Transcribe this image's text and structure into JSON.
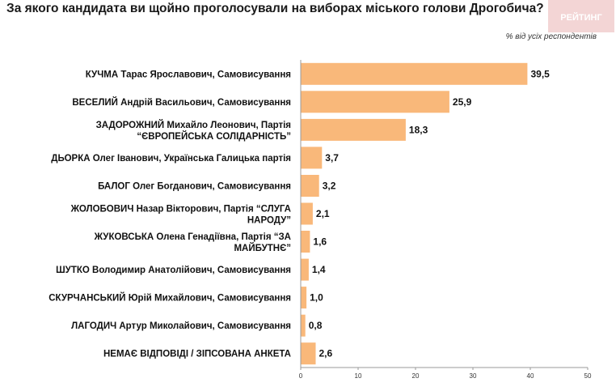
{
  "header": {
    "title": "За якого кандидата ви щойно проголосували на виборах міського голови Дрогобича?",
    "logo_text": "РЕЙТИНГ"
  },
  "chart_data": {
    "type": "bar",
    "orientation": "horizontal",
    "title": "За якого кандидата ви щойно проголосували на виборах міського голови Дрогобича?",
    "unit_note": "% від усіх респондентів",
    "categories": [
      "КУЧМА Тарас Ярославович, Самовисування",
      "ВЕСЕЛИЙ Андрій Васильович, Самовисування",
      "ЗАДОРОЖНИЙ Михайло Леонович, Партія “ЄВРОПЕЙСЬКА СОЛІДАРНІСТЬ”",
      "ДЬОРКА Олег Іванович, Українська Галицька партія",
      "БАЛОГ Олег Богданович, Самовисування",
      "ЖОЛОБОВИЧ Назар Вікторович, Партія “СЛУГА НАРОДУ”",
      "ЖУКОВСЬКА Олена Генадіївна, Партія “ЗА МАЙБУТНЄ”",
      "ШУТКО Володимир Анатолійович, Самовисування",
      "СКУРЧАНСЬКИЙ Юрій Михайлович, Самовисування",
      "ЛАГОДИЧ Артур Миколайович, Самовисування",
      "НЕМАЄ ВІДПОВІДІ / ЗІПСОВАНА АНКЕТА"
    ],
    "values": [
      39.5,
      25.9,
      18.3,
      3.7,
      3.2,
      2.1,
      1.6,
      1.4,
      1.0,
      0.8,
      2.6
    ],
    "value_labels": [
      "39,5",
      "25,9",
      "18,3",
      "3,7",
      "3,2",
      "2,1",
      "1,6",
      "1,4",
      "1,0",
      "0,8",
      "2,6"
    ],
    "xlim": [
      0,
      50
    ],
    "xticks": [
      0,
      10,
      20,
      30,
      40,
      50
    ],
    "grid": false,
    "bar_color": "#f9b87a"
  },
  "colors": {
    "bar": "#f9b87a",
    "logo_bg": "#f3d5d5",
    "logo_text": "#ffffff",
    "axis": "#9a9a9a"
  }
}
